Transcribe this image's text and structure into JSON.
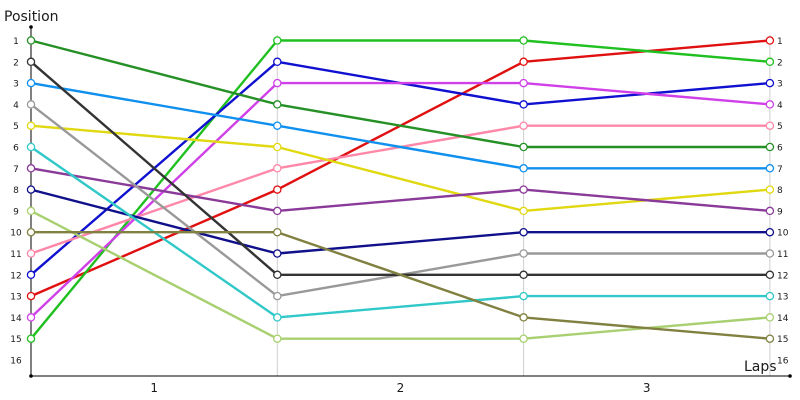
{
  "chart_data": {
    "type": "line",
    "title": "",
    "xlabel": "Laps",
    "ylabel": "Position",
    "x_ticks": [
      "1",
      "2",
      "3"
    ],
    "y_ticks": [
      "1",
      "2",
      "3",
      "4",
      "5",
      "6",
      "7",
      "8",
      "9",
      "10",
      "11",
      "12",
      "13",
      "14",
      "15",
      "16"
    ],
    "right_labels": [
      "1",
      "2",
      "3",
      "4",
      "5",
      "6",
      "7",
      "8",
      "9",
      "10",
      "11",
      "12",
      "13",
      "14",
      "15"
    ],
    "ylim": [
      1,
      16
    ],
    "y_inverted": true,
    "grid": "vertical",
    "legend": "none",
    "series": [
      {
        "color": "#e01010",
        "values": [
          13,
          8,
          2,
          1
        ]
      },
      {
        "color": "#20c020",
        "values": [
          15,
          1,
          1,
          2
        ]
      },
      {
        "color": "#1010d0",
        "values": [
          12,
          2,
          4,
          3
        ]
      },
      {
        "color": "#d040e8",
        "values": [
          14,
          3,
          3,
          4
        ]
      },
      {
        "color": "#ff88a8",
        "values": [
          11,
          7,
          5,
          5
        ]
      },
      {
        "color": "#259025",
        "values": [
          1,
          4,
          6,
          6
        ]
      },
      {
        "color": "#1090ee",
        "values": [
          3,
          5,
          7,
          7
        ]
      },
      {
        "color": "#e0d810",
        "values": [
          5,
          6,
          9,
          8
        ]
      },
      {
        "color": "#8a3a98",
        "values": [
          7,
          9,
          8,
          9
        ]
      },
      {
        "color": "#10108a",
        "values": [
          8,
          11,
          10,
          10
        ]
      },
      {
        "color": "#999999",
        "values": [
          4,
          13,
          11,
          11
        ]
      },
      {
        "color": "#333333",
        "values": [
          2,
          12,
          12,
          12
        ]
      },
      {
        "color": "#30c8c8",
        "values": [
          6,
          14,
          13,
          13
        ]
      },
      {
        "color": "#a8d070",
        "values": [
          9,
          15,
          15,
          14
        ]
      },
      {
        "color": "#808040",
        "values": [
          10,
          10,
          14,
          15
        ]
      }
    ]
  }
}
